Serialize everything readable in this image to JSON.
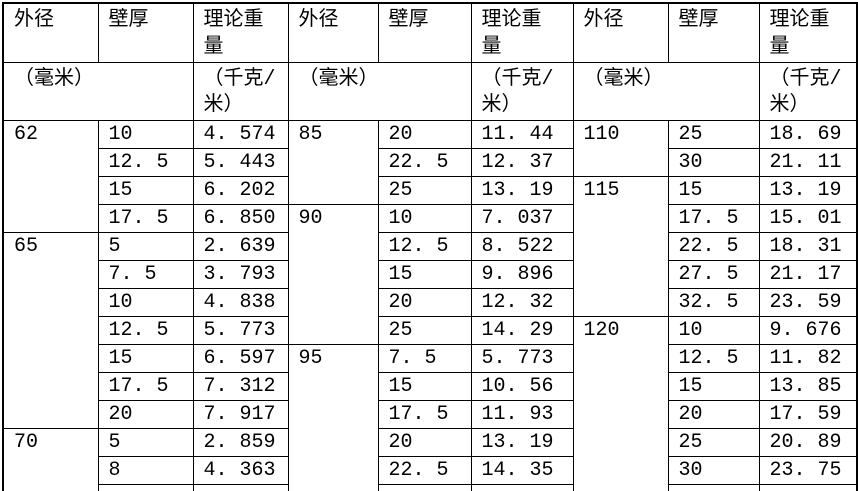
{
  "table": {
    "title_semantic": "pipe-theoretical-weight-table",
    "row_count": 14,
    "header": {
      "od_label": "外径",
      "thickness_label": "壁厚",
      "weight_label": "理论重\n量",
      "unit_mm": "（毫米）",
      "unit_kg_per_m": "（千克/\n米）"
    },
    "groups": [
      {
        "sections": [
          {
            "od": "62",
            "rows": [
              [
                "10",
                "4. 574"
              ],
              [
                "12. 5",
                "5. 443"
              ],
              [
                "15",
                "6. 202"
              ],
              [
                "17. 5",
                "6. 850"
              ]
            ]
          },
          {
            "od": "65",
            "rows": [
              [
                "5",
                "2. 639"
              ],
              [
                "7. 5",
                "3. 793"
              ],
              [
                "10",
                "4. 838"
              ],
              [
                "12. 5",
                "5. 773"
              ],
              [
                "15",
                "6. 597"
              ],
              [
                "17. 5",
                "7. 312"
              ],
              [
                "20",
                "7. 917"
              ]
            ]
          },
          {
            "od": "70",
            "rows": [
              [
                "5",
                "2. 859"
              ],
              [
                "8",
                "4. 363"
              ],
              [
                "",
                ""
              ]
            ]
          }
        ]
      },
      {
        "sections": [
          {
            "od": "85",
            "rows": [
              [
                "20",
                "11. 44"
              ],
              [
                "22. 5",
                "12. 37"
              ],
              [
                "25",
                "13. 19"
              ]
            ]
          },
          {
            "od": "90",
            "rows": [
              [
                "10",
                "7. 037"
              ],
              [
                "12. 5",
                "8. 522"
              ],
              [
                "15",
                "9. 896"
              ],
              [
                "20",
                "12. 32"
              ],
              [
                "25",
                "14. 29"
              ]
            ]
          },
          {
            "od": "95",
            "rows": [
              [
                "7. 5",
                "5. 773"
              ],
              [
                "15",
                "10. 56"
              ],
              [
                "17. 5",
                "11. 93"
              ],
              [
                "20",
                "13. 19"
              ],
              [
                "22. 5",
                "14. 35"
              ],
              [
                "",
                ""
              ]
            ]
          }
        ]
      },
      {
        "sections": [
          {
            "od": "110",
            "rows": [
              [
                "25",
                "18. 69"
              ],
              [
                "30",
                "21. 11"
              ]
            ]
          },
          {
            "od": "115",
            "rows": [
              [
                "15",
                "13. 19"
              ],
              [
                "17. 5",
                "15. 01"
              ],
              [
                "22. 5",
                "18. 31"
              ],
              [
                "27. 5",
                "21. 17"
              ],
              [
                "32. 5",
                "23. 59"
              ]
            ]
          },
          {
            "od": "120",
            "rows": [
              [
                "10",
                "9. 676"
              ],
              [
                "12. 5",
                "11. 82"
              ],
              [
                "15",
                "13. 85"
              ],
              [
                "20",
                "17. 59"
              ],
              [
                "25",
                "20. 89"
              ],
              [
                "30",
                "23. 75"
              ],
              [
                "",
                ""
              ]
            ]
          }
        ]
      }
    ],
    "colors": {
      "border": "#000000",
      "background": "#ffffff",
      "text": "#000000"
    }
  }
}
